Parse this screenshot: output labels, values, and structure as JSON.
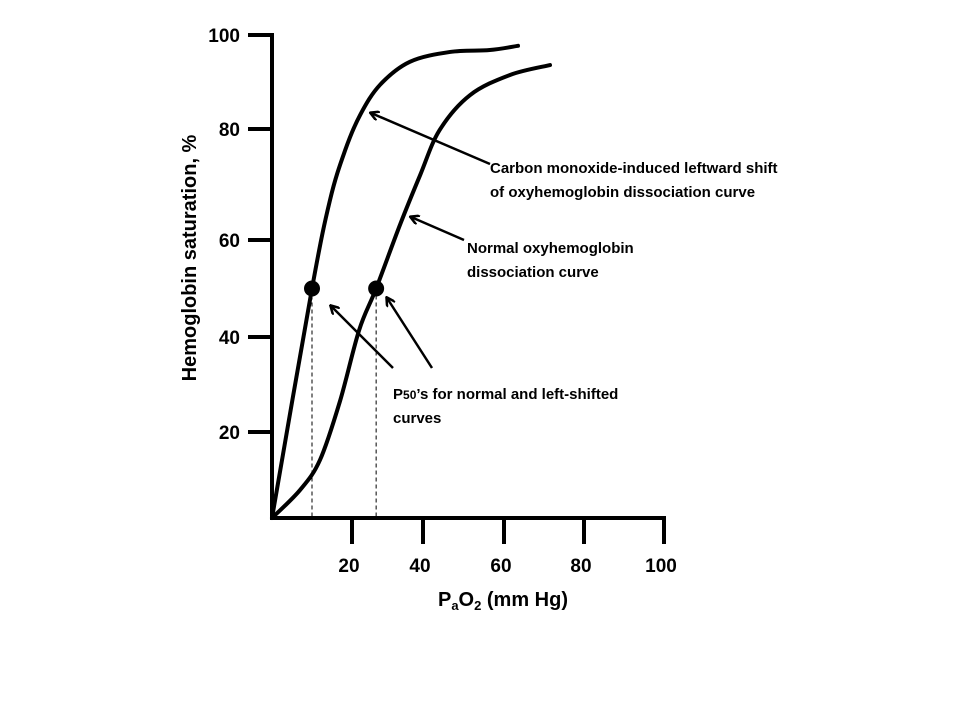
{
  "chart_data": {
    "type": "line",
    "title": "",
    "xlabel": {
      "main": "P",
      "sub1": "a",
      "mid": "O",
      "sub2": "2",
      "rest": " (mm Hg)"
    },
    "ylabel": "Hemoglobin saturation, %",
    "xlim": [
      0,
      100
    ],
    "ylim": [
      0,
      100
    ],
    "x_ticks": [
      "20",
      "40",
      "60",
      "80",
      "100"
    ],
    "y_ticks": [
      "20",
      "40",
      "60",
      "80",
      "100"
    ],
    "grid": false,
    "series": [
      {
        "id": "co-shifted",
        "x": [
          0,
          10,
          14.5,
          18.3,
          22.3,
          27.9,
          36.3,
          46.7,
          56.5,
          63.5
        ],
        "y": [
          0,
          50,
          67.2,
          76.2,
          83,
          89.4,
          94.3,
          96.4,
          96.8,
          97.7
        ]
      },
      {
        "id": "normal",
        "x": [
          0,
          7,
          12,
          17,
          22,
          26.8,
          33.5,
          39.2,
          44.1,
          51.6,
          61.5,
          71.5
        ],
        "y": [
          0,
          6.5,
          13.5,
          26.5,
          41.4,
          50,
          62.7,
          71.7,
          79.8,
          87.2,
          91.5,
          93.6
        ]
      }
    ],
    "p50_points": [
      {
        "x": 10,
        "y": 50
      },
      {
        "x": 26.8,
        "y": 50
      }
    ],
    "annotations": {
      "co": [
        "Carbon monoxide-induced leftward shift",
        "of oxyhemoglobin dissociation curve"
      ],
      "normal": [
        "Normal oxyhemoglobin",
        "dissociation curve"
      ],
      "p50": {
        "p": "P",
        "sub": "50",
        "rest": "’s for normal and left-shifted",
        "line2": "curves"
      }
    },
    "colors": {
      "line": "#000000",
      "background": "#ffffff"
    }
  }
}
